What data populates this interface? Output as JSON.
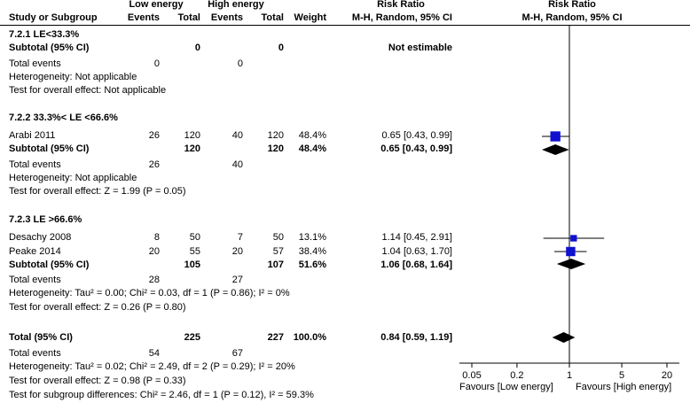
{
  "chart_data": {
    "type": "forest",
    "header": {
      "group1": "Low energy",
      "group2": "High energy",
      "rr_left": "Risk Ratio",
      "rr_right": "Risk Ratio",
      "col_study": "Study or Subgroup",
      "col_events1": "Events",
      "col_total1": "Total",
      "col_events2": "Events",
      "col_total2": "Total",
      "col_weight": "Weight",
      "col_method_left": "M-H, Random, 95% CI",
      "col_method_right": "M-H, Random, 95% CI"
    },
    "subgroups": [
      {
        "title": "7.2.1 LE<33.3%",
        "studies": [],
        "subtotal": {
          "label": "Subtotal (95% CI)",
          "total1": "0",
          "total2": "0",
          "weight": "",
          "ci_text": "Not estimable",
          "rr": null,
          "lo": null,
          "hi": null
        },
        "events": {
          "label": "Total events",
          "e1": "0",
          "e2": "0"
        },
        "heterogeneity": "Heterogeneity: Not applicable",
        "overall": "Test for overall effect: Not applicable"
      },
      {
        "title": "7.2.2 33.3%< LE <66.6%",
        "studies": [
          {
            "name": "Arabi 2011",
            "e1": "26",
            "t1": "120",
            "e2": "40",
            "t2": "120",
            "weight": "48.4%",
            "ci_text": "0.65 [0.43, 0.99]",
            "rr": 0.65,
            "lo": 0.43,
            "hi": 0.99,
            "w": 48.4
          }
        ],
        "subtotal": {
          "label": "Subtotal (95% CI)",
          "total1": "120",
          "total2": "120",
          "weight": "48.4%",
          "ci_text": "0.65 [0.43, 0.99]",
          "rr": 0.65,
          "lo": 0.43,
          "hi": 0.99
        },
        "events": {
          "label": "Total events",
          "e1": "26",
          "e2": "40"
        },
        "heterogeneity": "Heterogeneity: Not applicable",
        "overall": "Test for overall effect: Z = 1.99 (P = 0.05)"
      },
      {
        "title": "7.2.3 LE >66.6%",
        "studies": [
          {
            "name": "Desachy 2008",
            "e1": "8",
            "t1": "50",
            "e2": "7",
            "t2": "50",
            "weight": "13.1%",
            "ci_text": "1.14 [0.45, 2.91]",
            "rr": 1.14,
            "lo": 0.45,
            "hi": 2.91,
            "w": 13.1
          },
          {
            "name": "Peake 2014",
            "e1": "20",
            "t1": "55",
            "e2": "20",
            "t2": "57",
            "weight": "38.4%",
            "ci_text": "1.04 [0.63, 1.70]",
            "rr": 1.04,
            "lo": 0.63,
            "hi": 1.7,
            "w": 38.4
          }
        ],
        "subtotal": {
          "label": "Subtotal (95% CI)",
          "total1": "105",
          "total2": "107",
          "weight": "51.6%",
          "ci_text": "1.06 [0.68, 1.64]",
          "rr": 1.06,
          "lo": 0.68,
          "hi": 1.64
        },
        "events": {
          "label": "Total events",
          "e1": "28",
          "e2": "27"
        },
        "heterogeneity": "Heterogeneity: Tau² = 0.00; Chi² = 0.03, df = 1 (P = 0.86); I² = 0%",
        "overall": "Test for overall effect: Z = 0.26 (P = 0.80)"
      }
    ],
    "total": {
      "label": "Total (95% CI)",
      "total1": "225",
      "total2": "227",
      "weight": "100.0%",
      "ci_text": "0.84 [0.59, 1.19]",
      "rr": 0.84,
      "lo": 0.59,
      "hi": 1.19
    },
    "total_events": {
      "label": "Total events",
      "e1": "54",
      "e2": "67"
    },
    "footer": {
      "heterogeneity": "Heterogeneity: Tau² = 0.02; Chi² = 2.49, df = 2 (P = 0.29); I² = 20%",
      "overall": "Test for overall effect: Z = 0.98 (P = 0.33)",
      "subgroup_diff": "Test for subgroup differences: Chi² = 2.46, df = 1 (P = 0.12), I² = 59.3%"
    },
    "axis": {
      "scale": "log",
      "ticks": [
        0.05,
        0.2,
        1,
        5,
        20
      ],
      "tick_labels": [
        "0.05",
        "0.2",
        "1",
        "5",
        "20"
      ],
      "xlim": [
        0.05,
        20
      ],
      "label_left": "Favours [Low energy]",
      "label_right": "Favours [High energy]"
    },
    "colors": {
      "study_marker": "#1010d0",
      "diamond": "#000000"
    }
  }
}
